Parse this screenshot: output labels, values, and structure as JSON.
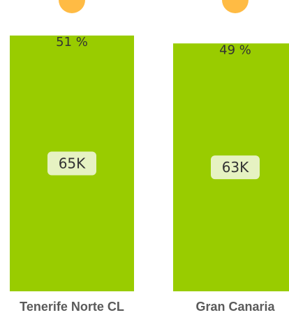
{
  "chart_data": {
    "type": "bar",
    "categories": [
      "Tenerife Norte CL",
      "Gran Canaria"
    ],
    "values": [
      65000,
      63000
    ],
    "value_labels": [
      "65K",
      "63K"
    ],
    "percent_labels": [
      "51 %",
      "49 %"
    ],
    "title": "",
    "xlabel": "",
    "ylabel": "",
    "grid": false,
    "legend": "none"
  },
  "colors": {
    "bar": "#99cc00",
    "value_label_bg": "#e6f2c2",
    "value_label_text": "#333333",
    "percent_text": "#333333",
    "category_text": "#5a5a5a",
    "marker": "#ffbb44"
  }
}
